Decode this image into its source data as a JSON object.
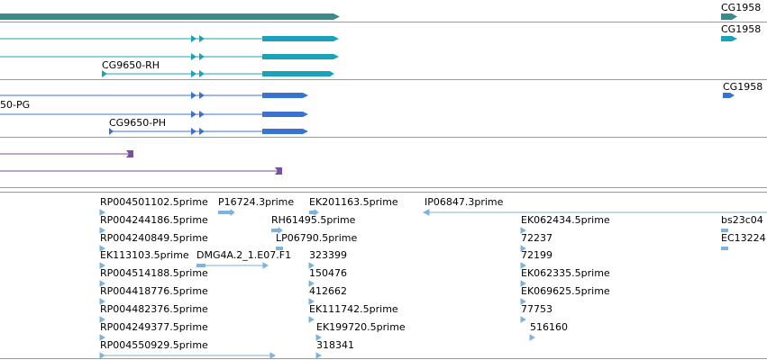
{
  "genome_viewer": {
    "colors": {
      "gene": "#3a8c8c",
      "mrna": "#1aa3b8",
      "cds": "#3a73cf",
      "ncrna": "#7a4ea1",
      "est": "#7fb2dd",
      "separator": "#9a9a9a"
    },
    "gene_track": {
      "right_label": "CG1958"
    },
    "mrna_track": {
      "labels": [
        "CG1958",
        "CG9650-RH"
      ]
    },
    "cds_track": {
      "labels": [
        "CG1958",
        "50-PG",
        "CG9650-PH"
      ]
    },
    "est_track": {
      "labels": [
        "RP004501102.5prime",
        "P16724.3prime",
        "EK201163.5prime",
        "IP06847.3prime",
        "RP004244186.5prime",
        "RH61495.5prime",
        "EK062434.5prime",
        "bs23c04",
        "RP004240849.5prime",
        "LP06790.5prime",
        "72237",
        "EC13224",
        "EK113103.5prime",
        "DMG4A.2_1.E07.F1",
        "323399",
        "72199",
        "RP004514188.5prime",
        "150476",
        "EK062335.5prime",
        "RP004418776.5prime",
        "412662",
        "EK069625.5prime",
        "RP004482376.5prime",
        "EK111742.5prime",
        "77753",
        "RP004249377.5prime",
        "EK199720.5prime",
        "516160",
        "RP004550929.5prime",
        "318341"
      ]
    }
  }
}
